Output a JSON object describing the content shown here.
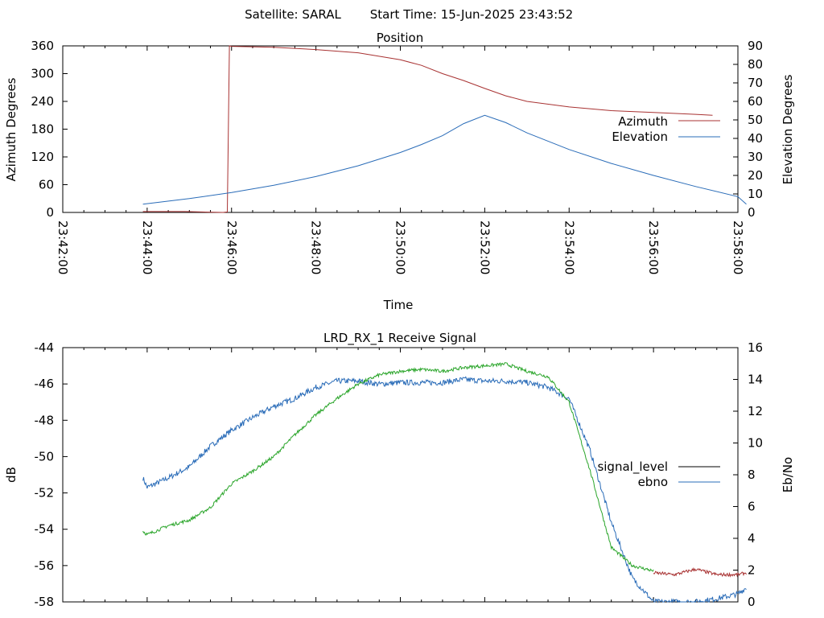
{
  "header": {
    "satellite": "Satellite: SARAL",
    "start_time": "Start Time: 15-Jun-2025 23:43:52"
  },
  "chart_data": [
    {
      "type": "line",
      "title": "Position",
      "xlabel": "Time",
      "ylabel": "Azimuth Degrees",
      "y2label": "Elevation Degrees",
      "x_ticks": [
        "23:42:00",
        "23:44:00",
        "23:46:00",
        "23:48:00",
        "23:50:00",
        "23:52:00",
        "23:54:00",
        "23:56:00",
        "23:58:00"
      ],
      "xlim_min": [
        0,
        16
      ],
      "ylim": [
        0,
        360
      ],
      "y_ticks": [
        "360",
        "300",
        "240",
        "180",
        "120",
        "60",
        "0"
      ],
      "y2lim": [
        0,
        90
      ],
      "y2_ticks": [
        "90",
        "80",
        "70",
        "60",
        "50",
        "40",
        "30",
        "20",
        "10",
        "0"
      ],
      "legend_placement": "right",
      "series": [
        {
          "name": "Azimuth",
          "color": "#a83232",
          "axis": "left",
          "x": [
            1.9,
            2.9,
            3.8,
            3.9,
            3.95,
            4.0,
            5.0,
            6.0,
            7.0,
            8.0,
            8.5,
            9.0,
            9.5,
            10.0,
            10.5,
            11.0,
            12.0,
            13.0,
            14.0,
            15.0,
            15.4
          ],
          "y": [
            2,
            2,
            0,
            1,
            360,
            359,
            357,
            352,
            345,
            330,
            318,
            300,
            285,
            268,
            252,
            240,
            228,
            220,
            216,
            212,
            210
          ]
        },
        {
          "name": "Elevation",
          "color": "#2a6cb8",
          "axis": "right",
          "x": [
            1.9,
            3.0,
            4.0,
            5.0,
            6.0,
            7.0,
            8.0,
            8.5,
            9.0,
            9.5,
            10.0,
            10.5,
            11.0,
            12.0,
            13.0,
            14.0,
            15.0,
            16.0,
            16.2
          ],
          "y": [
            4.5,
            7.5,
            10.8,
            14.7,
            19.4,
            25.2,
            32.4,
            36.7,
            41.5,
            48.0,
            52.5,
            48.5,
            43.0,
            34.0,
            26.5,
            20.0,
            14.0,
            8.5,
            4.5
          ]
        }
      ]
    },
    {
      "type": "line",
      "title": "LRD_RX_1 Receive Signal",
      "ylabel": "dB",
      "y2label": "Eb/No",
      "ylim": [
        -58,
        -44
      ],
      "y_ticks": [
        "-44",
        "-46",
        "-48",
        "-50",
        "-52",
        "-54",
        "-56",
        "-58"
      ],
      "y2lim": [
        0,
        16
      ],
      "y2_ticks": [
        "16",
        "14",
        "12",
        "10",
        "8",
        "6",
        "4",
        "2",
        "0"
      ],
      "legend_placement": "right",
      "series": [
        {
          "name": "signal_level",
          "color": "#000000",
          "axis": "left",
          "x": [],
          "y": []
        },
        {
          "name": "ebno",
          "color": "#2a6cb8",
          "axis": "right",
          "x": [
            1.9,
            2.0,
            2.5,
            3.0,
            3.5,
            4.0,
            4.5,
            5.0,
            5.5,
            6.0,
            6.5,
            7.0,
            7.5,
            8.0,
            8.5,
            9.0,
            9.5,
            10.0,
            10.5,
            11.0,
            11.5,
            12.0,
            12.5,
            13.0,
            13.5,
            14.0,
            14.5,
            15.0,
            15.5,
            16.0,
            16.2
          ],
          "y": [
            7.8,
            7.2,
            7.8,
            8.5,
            9.8,
            10.8,
            11.6,
            12.3,
            12.8,
            13.5,
            13.9,
            13.9,
            13.7,
            13.8,
            13.8,
            13.8,
            14.0,
            13.9,
            13.9,
            13.8,
            13.5,
            12.8,
            9.5,
            5.0,
            1.5,
            0.0,
            0.0,
            0.0,
            0.2,
            0.5,
            0.9
          ]
        },
        {
          "name": "",
          "color": "#2aa52a",
          "axis": "left",
          "x": [
            1.9,
            2.0,
            2.5,
            3.0,
            3.5,
            4.0,
            4.5,
            5.0,
            5.5,
            6.0,
            6.5,
            7.0,
            7.5,
            8.0,
            8.5,
            9.0,
            9.5,
            10.0,
            10.5,
            11.0,
            11.5,
            12.0,
            12.5,
            13.0,
            13.5,
            14.0
          ],
          "y": [
            -54.1,
            -54.3,
            -53.8,
            -53.5,
            -52.8,
            -51.5,
            -50.8,
            -50.0,
            -48.8,
            -47.7,
            -46.8,
            -46.0,
            -45.5,
            -45.3,
            -45.2,
            -45.3,
            -45.1,
            -45.0,
            -44.9,
            -45.3,
            -45.6,
            -47.0,
            -50.8,
            -55.0,
            -56.0,
            -56.3
          ]
        },
        {
          "name": "",
          "color": "#a83232",
          "axis": "left",
          "x": [
            14.0,
            14.5,
            15.0,
            15.5,
            16.0,
            16.2
          ],
          "y": [
            -56.4,
            -56.5,
            -56.2,
            -56.5,
            -56.5,
            -56.4
          ]
        }
      ]
    }
  ]
}
